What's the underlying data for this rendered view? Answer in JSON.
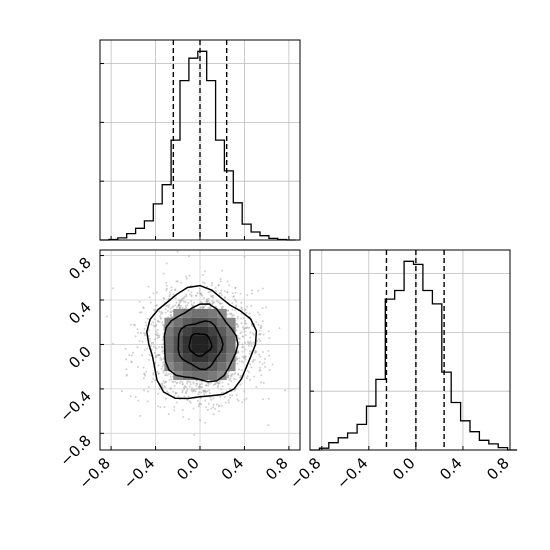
{
  "chart_data": [
    {
      "type": "histogram",
      "panel": "top-left",
      "xlim": [
        -0.9,
        0.9
      ],
      "bin_edges": [
        -0.9,
        -0.82,
        -0.74,
        -0.66,
        -0.58,
        -0.5,
        -0.42,
        -0.34,
        -0.26,
        -0.18,
        -0.1,
        -0.02,
        0.06,
        0.14,
        0.22,
        0.3,
        0.38,
        0.46,
        0.54,
        0.62,
        0.7,
        0.78,
        0.86
      ],
      "counts": [
        0,
        1,
        4,
        12,
        22,
        36,
        68,
        104,
        188,
        300,
        342,
        355,
        300,
        188,
        130,
        70,
        30,
        15,
        8,
        3,
        1,
        0
      ],
      "quantile_lines": [
        -0.24,
        0.0,
        0.24
      ],
      "y_ticks_count": 3,
      "grid": true
    },
    {
      "type": "scatter_contour",
      "panel": "bottom-left",
      "xlim": [
        -0.9,
        0.9
      ],
      "ylim": [
        -0.95,
        0.85
      ],
      "x_ticks": [
        "−0.8",
        "−0.4",
        "0.0",
        "0.4",
        "0.8"
      ],
      "y_ticks": [
        "0.8",
        "0.4",
        "0.0",
        "−0.4",
        "−0.8"
      ],
      "x_tick_values": [
        -0.8,
        -0.4,
        0.0,
        0.4,
        0.8
      ],
      "y_tick_values": [
        0.8,
        0.4,
        0.0,
        -0.4,
        -0.8
      ],
      "center": [
        0.0,
        0.0
      ],
      "spread": 0.24,
      "contour_radii_x": [
        0.48,
        0.33,
        0.2,
        0.1
      ],
      "contour_radii_y": [
        0.5,
        0.34,
        0.21,
        0.1
      ],
      "grid": true
    },
    {
      "type": "histogram",
      "panel": "bottom-right",
      "xlim": [
        -0.9,
        0.8
      ],
      "x_ticks": [
        "−0.8",
        "−0.4",
        "0.0",
        "0.4",
        "0.8"
      ],
      "x_tick_values": [
        -0.8,
        -0.4,
        0.0,
        0.4,
        0.8
      ],
      "bin_edges": [
        -0.9,
        -0.82,
        -0.74,
        -0.66,
        -0.58,
        -0.5,
        -0.42,
        -0.34,
        -0.26,
        -0.18,
        -0.1,
        -0.02,
        0.06,
        0.14,
        0.22,
        0.3,
        0.38,
        0.46,
        0.54,
        0.62,
        0.7,
        0.78,
        0.86
      ],
      "counts": [
        0,
        3,
        12,
        20,
        28,
        42,
        72,
        116,
        248,
        262,
        310,
        305,
        262,
        240,
        128,
        78,
        48,
        30,
        16,
        10,
        4,
        0
      ],
      "quantile_lines": [
        -0.25,
        0.0,
        0.24
      ],
      "y_ticks_count": 3,
      "grid": true
    }
  ]
}
